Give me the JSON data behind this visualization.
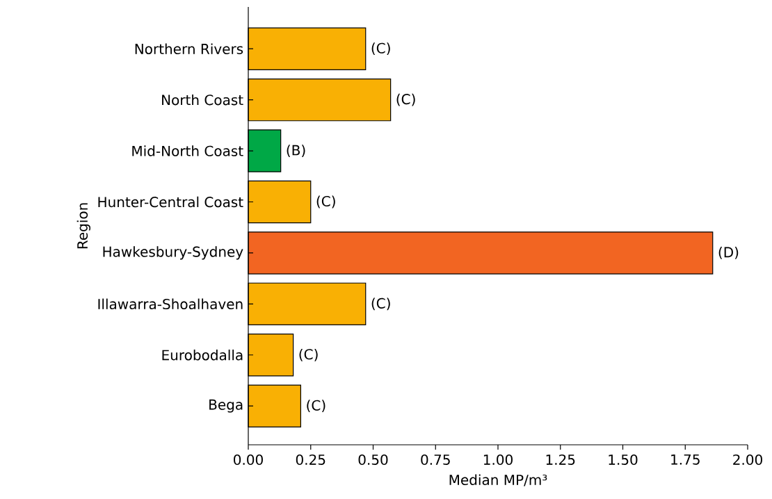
{
  "chart_data": {
    "type": "bar",
    "orientation": "horizontal",
    "xlabel": "Median MP/m³",
    "ylabel": "Region",
    "categories": [
      "Northern Rivers",
      "North Coast",
      "Mid-North Coast",
      "Hunter-Central Coast",
      "Hawkesbury-Sydney",
      "Illawarra-Shoalhaven",
      "Eurobodalla",
      "Bega"
    ],
    "values": [
      0.47,
      0.57,
      0.13,
      0.25,
      1.86,
      0.47,
      0.18,
      0.21
    ],
    "colors": [
      "#f9b004",
      "#f9b004",
      "#00a846",
      "#f9b004",
      "#f26522",
      "#f9b004",
      "#f9b004",
      "#f9b004"
    ],
    "xlim": [
      0,
      2
    ],
    "xticks": [
      {
        "value": 0,
        "label": "0.00"
      },
      {
        "value": 0.25,
        "label": "0.25"
      },
      {
        "value": 0.5,
        "label": "0.50"
      },
      {
        "value": 0.75,
        "label": "0.75"
      },
      {
        "value": 1,
        "label": "1.00"
      },
      {
        "value": 1.25,
        "label": "1.25"
      },
      {
        "value": 1.5,
        "label": "1.50"
      },
      {
        "value": 1.75,
        "label": "1.75"
      },
      {
        "value": 2,
        "label": "2.00"
      }
    ],
    "annotations": [
      {
        "text": "(C)",
        "x": 0.47,
        "y": "Northern Rivers"
      },
      {
        "text": "(C)",
        "x": 0.57,
        "y": "North Coast"
      },
      {
        "text": "(B)",
        "x": 0.13,
        "y": "Mid-North Coast"
      },
      {
        "text": "(C)",
        "x": 0.25,
        "y": "Hunter-Central Coast"
      },
      {
        "text": "(D)",
        "x": 1.86,
        "y": "Hawkesbury-Sydney"
      },
      {
        "text": "(C)",
        "x": 0.47,
        "y": "Illawarra-Shoalhaven"
      },
      {
        "text": "(C)",
        "x": 0.18,
        "y": "Eurobodalla"
      },
      {
        "text": "(C)",
        "x": 0.21,
        "y": "Bega"
      }
    ]
  }
}
